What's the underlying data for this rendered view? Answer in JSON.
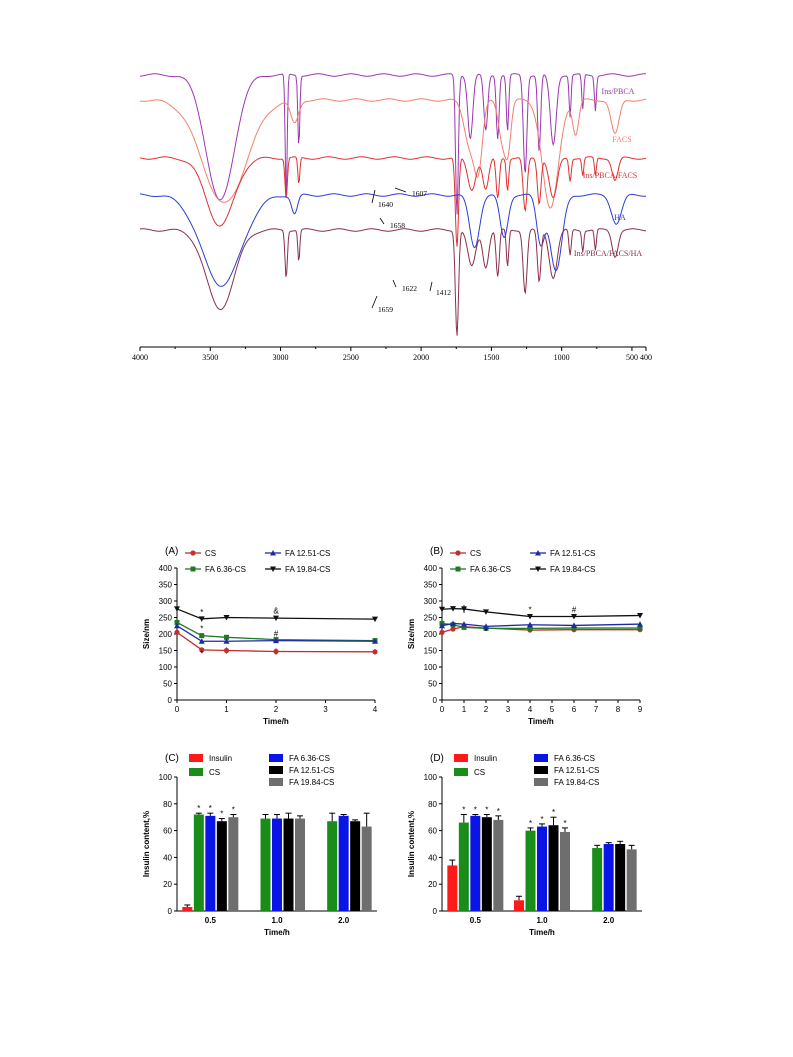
{
  "colors": {
    "axis": "#000000",
    "ins_pbca": "#9b38b0",
    "facs": "#f08070",
    "ins_pbca_facs": "#e03030",
    "ha": "#2a3ed8",
    "ins_pbca_facs_ha": "#8a3048",
    "cs_red": "#c0302c",
    "fa636_green": "#1f7a24",
    "fa1251_blue": "#1f2aa8",
    "fa1984_black": "#111111",
    "bar_insulin": "#ff1a1a",
    "bar_cs": "#1a8c1a",
    "bar_fa636": "#0a14e6",
    "bar_fa1251": "#000000",
    "bar_fa1984": "#6e6e6e"
  },
  "chart_data": [
    {
      "type": "line",
      "xlim": [
        4000,
        400
      ],
      "x_reversed": true,
      "xticks": [
        "4000",
        "3500",
        "3000",
        "2500",
        "2000",
        "1500",
        "1000",
        "500",
        "400"
      ],
      "series": [
        {
          "name": "Ins/PBCA"
        },
        {
          "name": "FACS"
        },
        {
          "name": "Ins/PBCA/FACS"
        },
        {
          "name": "HA"
        },
        {
          "name": "Ins/PBCA/FACS/HA"
        }
      ],
      "annotations": [
        {
          "text": "1607",
          "x": 1607
        },
        {
          "text": "1640",
          "x": 1640
        },
        {
          "text": "1658",
          "x": 1658
        },
        {
          "text": "1622",
          "x": 1622
        },
        {
          "text": "1412",
          "x": 1412
        },
        {
          "text": "1659",
          "x": 1659
        }
      ]
    },
    {
      "type": "line",
      "panel": "(A)",
      "xlabel": "Time/h",
      "ylabel": "Size/nm",
      "xlim": [
        0,
        4
      ],
      "ylim": [
        0,
        400
      ],
      "xticks": [
        "0",
        "1",
        "2",
        "3",
        "4"
      ],
      "yticks": [
        "0",
        "50",
        "100",
        "150",
        "200",
        "250",
        "300",
        "350",
        "400"
      ],
      "x": [
        0,
        0.5,
        1,
        2,
        4
      ],
      "series": [
        {
          "name": "CS",
          "values": [
            205,
            152,
            150,
            147,
            146
          ],
          "err": [
            0,
            3,
            10,
            10,
            8
          ]
        },
        {
          "name": "FA 6.36-CS",
          "values": [
            235,
            195,
            190,
            183,
            180
          ],
          "err": [
            0,
            3,
            3,
            3,
            3
          ]
        },
        {
          "name": "FA 12.51-CS",
          "values": [
            225,
            178,
            178,
            180,
            178
          ],
          "err": [
            0,
            3,
            3,
            3,
            3
          ]
        },
        {
          "name": "FA 19.84-CS",
          "values": [
            276,
            246,
            250,
            248,
            245
          ],
          "err": [
            0,
            3,
            3,
            3,
            3
          ]
        }
      ],
      "marks": [
        {
          "text": "*",
          "x": 0.5,
          "y": 258
        },
        {
          "text": "*",
          "x": 0.5,
          "y": 208
        },
        {
          "text": "*",
          "x": 0.5,
          "y": 132
        },
        {
          "text": "&",
          "x": 2,
          "y": 262
        },
        {
          "text": "#",
          "x": 2,
          "y": 192
        }
      ]
    },
    {
      "type": "line",
      "panel": "(B)",
      "xlabel": "Time/h",
      "ylabel": "Size/nm",
      "xlim": [
        0,
        9
      ],
      "ylim": [
        0,
        400
      ],
      "xticks": [
        "0",
        "1",
        "2",
        "3",
        "4",
        "5",
        "6",
        "7",
        "8",
        "9"
      ],
      "yticks": [
        "0",
        "50",
        "100",
        "150",
        "200",
        "250",
        "300",
        "350",
        "400"
      ],
      "x": [
        0,
        0.5,
        1,
        2,
        4,
        6,
        9
      ],
      "series": [
        {
          "name": "CS",
          "values": [
            205,
            215,
            222,
            218,
            212,
            213,
            213
          ],
          "err": [
            0,
            5,
            6,
            5,
            4,
            4,
            4
          ]
        },
        {
          "name": "FA 6.36-CS",
          "values": [
            232,
            228,
            220,
            217,
            217,
            218,
            218
          ],
          "err": [
            0,
            4,
            4,
            4,
            4,
            4,
            4
          ]
        },
        {
          "name": "FA 12.51-CS",
          "values": [
            225,
            232,
            230,
            223,
            228,
            226,
            230
          ],
          "err": [
            0,
            4,
            4,
            4,
            4,
            4,
            4
          ]
        },
        {
          "name": "FA 19.84-CS",
          "values": [
            275,
            277,
            276,
            267,
            253,
            253,
            256
          ],
          "err": [
            0,
            6,
            12,
            4,
            4,
            4,
            4
          ]
        }
      ],
      "marks": [
        {
          "text": "*",
          "x": 4,
          "y": 265
        },
        {
          "text": "#",
          "x": 6,
          "y": 265
        },
        {
          "text": "*",
          "x": 2,
          "y": 200
        }
      ]
    },
    {
      "type": "bar",
      "panel": "(C)",
      "xlabel": "Time/h",
      "ylabel": "Insulin content,%",
      "ylim": [
        0,
        100
      ],
      "yticks": [
        "0",
        "20",
        "40",
        "60",
        "80",
        "100"
      ],
      "categories": [
        "0.5",
        "1.0",
        "2.0"
      ],
      "series": [
        {
          "name": "Insulin",
          "values": [
            3,
            null,
            null
          ],
          "err": [
            1.5,
            0,
            0
          ]
        },
        {
          "name": "CS",
          "values": [
            72,
            69,
            67
          ],
          "err": [
            1,
            3,
            6
          ]
        },
        {
          "name": "FA 6.36-CS",
          "values": [
            71,
            69,
            71
          ],
          "err": [
            2,
            3,
            1
          ]
        },
        {
          "name": "FA 12.51-CS",
          "values": [
            67,
            69,
            67
          ],
          "err": [
            2,
            4,
            1
          ]
        },
        {
          "name": "FA 19.84-CS",
          "values": [
            70,
            69,
            63
          ],
          "err": [
            2,
            2,
            10
          ]
        }
      ],
      "marks": [
        "*",
        "*",
        "*",
        "*"
      ]
    },
    {
      "type": "bar",
      "panel": "(D)",
      "xlabel": "Time/h",
      "ylabel": "Insulin content,%",
      "ylim": [
        0,
        100
      ],
      "yticks": [
        "0",
        "20",
        "40",
        "60",
        "80",
        "100"
      ],
      "categories": [
        "0.5",
        "1.0",
        "2.0"
      ],
      "series": [
        {
          "name": "Insulin",
          "values": [
            34,
            8,
            null
          ],
          "err": [
            4,
            3,
            0
          ]
        },
        {
          "name": "CS",
          "values": [
            66,
            60,
            47
          ],
          "err": [
            6,
            2,
            2
          ]
        },
        {
          "name": "FA 6.36-CS",
          "values": [
            71,
            63,
            50
          ],
          "err": [
            1,
            2,
            1
          ]
        },
        {
          "name": "FA 12.51-CS",
          "values": [
            70,
            64,
            50
          ],
          "err": [
            2,
            6,
            2
          ]
        },
        {
          "name": "FA 19.84-CS",
          "values": [
            68,
            59,
            46
          ],
          "err": [
            3,
            3,
            3
          ]
        }
      ],
      "marks": [
        "*",
        "*",
        "*",
        "*",
        "*",
        "*",
        "*",
        "*"
      ]
    }
  ]
}
